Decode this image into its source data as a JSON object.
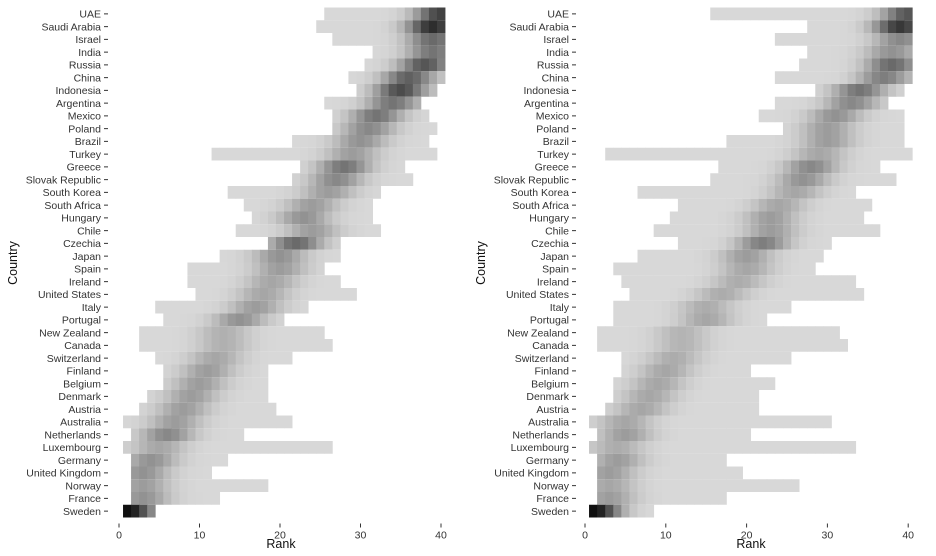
{
  "chart_data": [
    {
      "type": "heatmap",
      "xlabel": "Rank",
      "ylabel": "Country",
      "xlim": [
        1,
        40
      ],
      "xticks": [
        0,
        10,
        20,
        30,
        40
      ],
      "grid": false,
      "countries": [
        "UAE",
        "Saudi Arabia",
        "Israel",
        "India",
        "Russia",
        "China",
        "Indonesia",
        "Argentina",
        "Mexico",
        "Poland",
        "Brazil",
        "Turkey",
        "Greece",
        "Slovak Republic",
        "South Korea",
        "South Africa",
        "Hungary",
        "Chile",
        "Czechia",
        "Japan",
        "Spain",
        "Ireland",
        "United States",
        "Italy",
        "Portugal",
        "New Zealand",
        "Canada",
        "Switzerland",
        "Finland",
        "Belgium",
        "Denmark",
        "Austria",
        "Australia",
        "Netherlands",
        "Luxembourg",
        "Germany",
        "United Kingdom",
        "Norway",
        "France",
        "Sweden"
      ],
      "rank_distribution": [
        {
          "min": 26,
          "max": 40,
          "mode": 40,
          "peak": 0.75
        },
        {
          "min": 25,
          "max": 40,
          "mode": 39,
          "peak": 0.85
        },
        {
          "min": 27,
          "max": 40,
          "mode": 39,
          "peak": 0.55
        },
        {
          "min": 32,
          "max": 40,
          "mode": 39,
          "peak": 0.5
        },
        {
          "min": 31,
          "max": 40,
          "mode": 38,
          "peak": 0.65
        },
        {
          "min": 29,
          "max": 40,
          "mode": 36,
          "peak": 0.6
        },
        {
          "min": 30,
          "max": 39,
          "mode": 35,
          "peak": 0.7
        },
        {
          "min": 26,
          "max": 37,
          "mode": 34,
          "peak": 0.5
        },
        {
          "min": 27,
          "max": 38,
          "mode": 32,
          "peak": 0.5
        },
        {
          "min": 27,
          "max": 39,
          "mode": 31,
          "peak": 0.4
        },
        {
          "min": 22,
          "max": 38,
          "mode": 30,
          "peak": 0.35
        },
        {
          "min": 12,
          "max": 39,
          "mode": 29,
          "peak": 0.3
        },
        {
          "min": 23,
          "max": 35,
          "mode": 28,
          "peak": 0.5
        },
        {
          "min": 22,
          "max": 36,
          "mode": 27,
          "peak": 0.4
        },
        {
          "min": 14,
          "max": 32,
          "mode": 26,
          "peak": 0.3
        },
        {
          "min": 16,
          "max": 31,
          "mode": 24,
          "peak": 0.3
        },
        {
          "min": 17,
          "max": 31,
          "mode": 23,
          "peak": 0.35
        },
        {
          "min": 15,
          "max": 32,
          "mode": 24,
          "peak": 0.3
        },
        {
          "min": 19,
          "max": 27,
          "mode": 22,
          "peak": 0.55
        },
        {
          "min": 13,
          "max": 27,
          "mode": 20,
          "peak": 0.35
        },
        {
          "min": 9,
          "max": 25,
          "mode": 20,
          "peak": 0.3
        },
        {
          "min": 9,
          "max": 27,
          "mode": 19,
          "peak": 0.25
        },
        {
          "min": 10,
          "max": 29,
          "mode": 18,
          "peak": 0.25
        },
        {
          "min": 5,
          "max": 23,
          "mode": 17,
          "peak": 0.3
        },
        {
          "min": 6,
          "max": 20,
          "mode": 15,
          "peak": 0.35
        },
        {
          "min": 3,
          "max": 25,
          "mode": 13,
          "peak": 0.2
        },
        {
          "min": 3,
          "max": 26,
          "mode": 13,
          "peak": 0.2
        },
        {
          "min": 5,
          "max": 21,
          "mode": 12,
          "peak": 0.25
        },
        {
          "min": 6,
          "max": 18,
          "mode": 11,
          "peak": 0.3
        },
        {
          "min": 6,
          "max": 18,
          "mode": 10,
          "peak": 0.3
        },
        {
          "min": 4,
          "max": 18,
          "mode": 9,
          "peak": 0.3
        },
        {
          "min": 3,
          "max": 19,
          "mode": 8,
          "peak": 0.3
        },
        {
          "min": 1,
          "max": 21,
          "mode": 7,
          "peak": 0.3
        },
        {
          "min": 2,
          "max": 15,
          "mode": 6,
          "peak": 0.4
        },
        {
          "min": 1,
          "max": 26,
          "mode": 5,
          "peak": 0.25
        },
        {
          "min": 2,
          "max": 13,
          "mode": 4,
          "peak": 0.35
        },
        {
          "min": 2,
          "max": 11,
          "mode": 3,
          "peak": 0.35
        },
        {
          "min": 2,
          "max": 18,
          "mode": 3,
          "peak": 0.3
        },
        {
          "min": 2,
          "max": 12,
          "mode": 3,
          "peak": 0.35
        },
        {
          "min": 1,
          "max": 4,
          "mode": 1,
          "peak": 1.0
        }
      ]
    },
    {
      "type": "heatmap",
      "xlabel": "Rank",
      "ylabel": "Country",
      "xlim": [
        1,
        40
      ],
      "xticks": [
        0,
        10,
        20,
        30,
        40
      ],
      "grid": false,
      "countries": [
        "UAE",
        "Saudi Arabia",
        "Israel",
        "India",
        "Russia",
        "China",
        "Indonesia",
        "Argentina",
        "Mexico",
        "Poland",
        "Brazil",
        "Turkey",
        "Greece",
        "Slovak Republic",
        "South Korea",
        "South Africa",
        "Hungary",
        "Chile",
        "Czechia",
        "Japan",
        "Spain",
        "Ireland",
        "United States",
        "Italy",
        "Portugal",
        "New Zealand",
        "Canada",
        "Switzerland",
        "Finland",
        "Belgium",
        "Denmark",
        "Austria",
        "Australia",
        "Netherlands",
        "Luxembourg",
        "Germany",
        "United Kingdom",
        "Norway",
        "France",
        "Sweden"
      ],
      "rank_distribution": [
        {
          "min": 16,
          "max": 40,
          "mode": 40,
          "peak": 0.65
        },
        {
          "min": 28,
          "max": 40,
          "mode": 39,
          "peak": 0.8
        },
        {
          "min": 24,
          "max": 40,
          "mode": 39,
          "peak": 0.4
        },
        {
          "min": 28,
          "max": 40,
          "mode": 38,
          "peak": 0.35
        },
        {
          "min": 27,
          "max": 40,
          "mode": 38,
          "peak": 0.55
        },
        {
          "min": 24,
          "max": 40,
          "mode": 37,
          "peak": 0.45
        },
        {
          "min": 29,
          "max": 39,
          "mode": 34,
          "peak": 0.5
        },
        {
          "min": 24,
          "max": 37,
          "mode": 33,
          "peak": 0.4
        },
        {
          "min": 22,
          "max": 39,
          "mode": 31,
          "peak": 0.35
        },
        {
          "min": 25,
          "max": 39,
          "mode": 30,
          "peak": 0.3
        },
        {
          "min": 18,
          "max": 39,
          "mode": 30,
          "peak": 0.3
        },
        {
          "min": 3,
          "max": 40,
          "mode": 29,
          "peak": 0.25
        },
        {
          "min": 17,
          "max": 36,
          "mode": 28,
          "peak": 0.4
        },
        {
          "min": 16,
          "max": 38,
          "mode": 27,
          "peak": 0.35
        },
        {
          "min": 7,
          "max": 33,
          "mode": 26,
          "peak": 0.25
        },
        {
          "min": 12,
          "max": 35,
          "mode": 24,
          "peak": 0.25
        },
        {
          "min": 11,
          "max": 34,
          "mode": 23,
          "peak": 0.3
        },
        {
          "min": 9,
          "max": 36,
          "mode": 23,
          "peak": 0.3
        },
        {
          "min": 12,
          "max": 30,
          "mode": 22,
          "peak": 0.45
        },
        {
          "min": 7,
          "max": 29,
          "mode": 20,
          "peak": 0.3
        },
        {
          "min": 4,
          "max": 28,
          "mode": 20,
          "peak": 0.25
        },
        {
          "min": 5,
          "max": 33,
          "mode": 19,
          "peak": 0.22
        },
        {
          "min": 6,
          "max": 34,
          "mode": 17,
          "peak": 0.22
        },
        {
          "min": 4,
          "max": 25,
          "mode": 15,
          "peak": 0.22
        },
        {
          "min": 4,
          "max": 22,
          "mode": 15,
          "peak": 0.25
        },
        {
          "min": 2,
          "max": 31,
          "mode": 12,
          "peak": 0.18
        },
        {
          "min": 2,
          "max": 32,
          "mode": 12,
          "peak": 0.18
        },
        {
          "min": 5,
          "max": 25,
          "mode": 11,
          "peak": 0.22
        },
        {
          "min": 5,
          "max": 20,
          "mode": 10,
          "peak": 0.25
        },
        {
          "min": 4,
          "max": 23,
          "mode": 9,
          "peak": 0.25
        },
        {
          "min": 4,
          "max": 21,
          "mode": 8,
          "peak": 0.25
        },
        {
          "min": 3,
          "max": 21,
          "mode": 7,
          "peak": 0.25
        },
        {
          "min": 1,
          "max": 30,
          "mode": 5,
          "peak": 0.25
        },
        {
          "min": 2,
          "max": 20,
          "mode": 5,
          "peak": 0.3
        },
        {
          "min": 1,
          "max": 33,
          "mode": 4,
          "peak": 0.22
        },
        {
          "min": 2,
          "max": 17,
          "mode": 4,
          "peak": 0.3
        },
        {
          "min": 2,
          "max": 19,
          "mode": 3,
          "peak": 0.3
        },
        {
          "min": 2,
          "max": 26,
          "mode": 3,
          "peak": 0.25
        },
        {
          "min": 2,
          "max": 17,
          "mode": 3,
          "peak": 0.3
        },
        {
          "min": 1,
          "max": 8,
          "mode": 1,
          "peak": 1.0
        }
      ]
    }
  ]
}
